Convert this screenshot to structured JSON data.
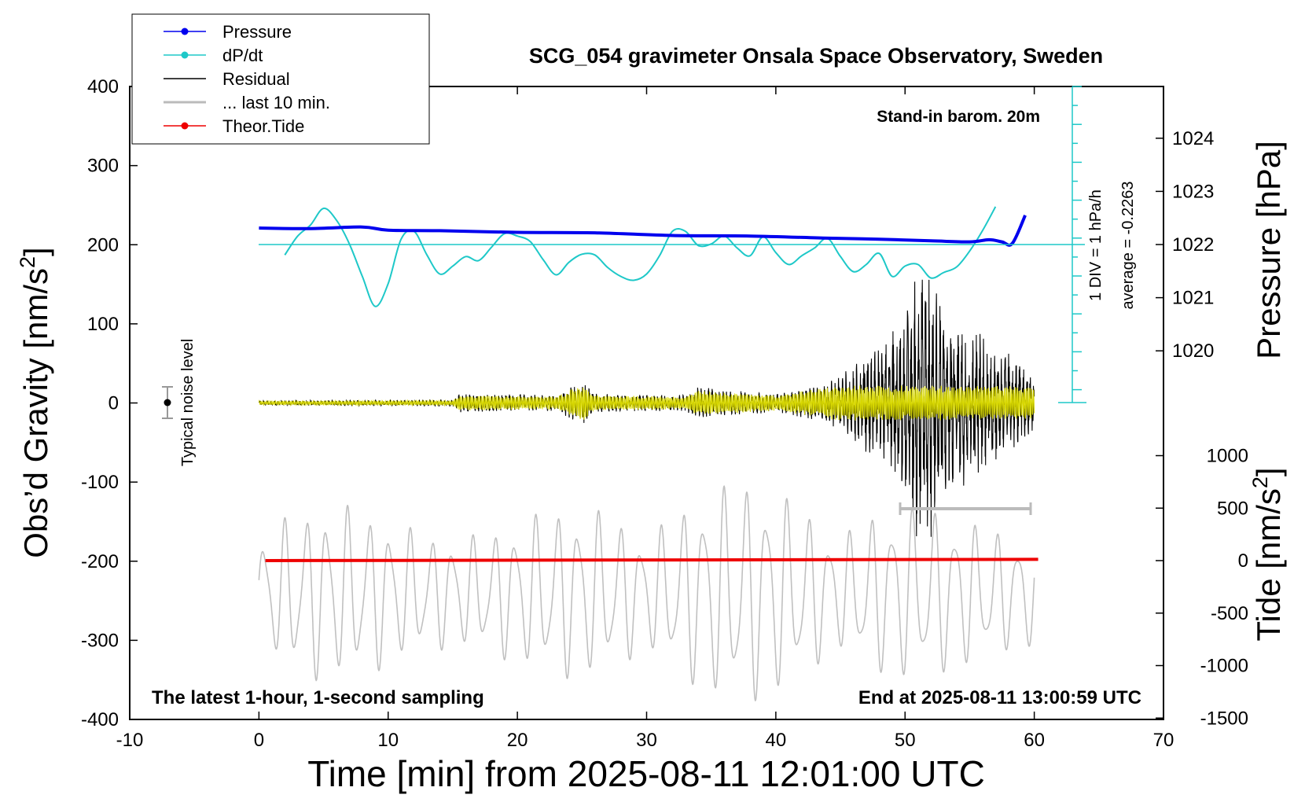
{
  "chart_data": {
    "type": "line",
    "title": "SCG_054 gravimeter Onsala Space Observatory, Sweden",
    "xlabel": "Time [min] from 2025-08-11 12:01:00 UTC",
    "ylabel_main": "Obs’d Gravity [nm/s",
    "ylabel_main_sup": "2",
    "ylabel_main_close": "]",
    "ylabel_pressure": "Pressure [hPa]",
    "ylabel_tide": "Tide [nm/s",
    "ylabel_tide_sup": "2",
    "ylabel_tide_close": "]",
    "xlim": [
      -10,
      70
    ],
    "ylim": [
      -400,
      400
    ],
    "x_ticks": [
      -10,
      0,
      10,
      20,
      30,
      40,
      50,
      60,
      70
    ],
    "y_ticks": [
      -400,
      -300,
      -200,
      -100,
      0,
      100,
      200,
      300,
      400
    ],
    "pressure_ticks": [
      1020,
      1021,
      1022,
      1023,
      1024
    ],
    "tide_ticks": [
      -1500,
      -1000,
      -500,
      0,
      500,
      1000
    ],
    "legend": [
      {
        "label": "Pressure",
        "color": "#0000ee",
        "marker": true
      },
      {
        "label": "dP/dt",
        "color": "#1ec8c8",
        "marker": true
      },
      {
        "label": "Residual",
        "color": "#000000",
        "marker": false
      },
      {
        "label": "... last 10 min.",
        "color": "#bbbbbb",
        "marker": false
      },
      {
        "label": "Theor.Tide",
        "color": "#ee0000",
        "marker": true
      }
    ],
    "annotations": {
      "barom": "Stand-in barom. 20m",
      "div": "1 DIV = 1 hPa/h",
      "average": "average = -0.2263",
      "noise": "Typical noise level",
      "latest": "The latest 1-hour, 1-second sampling",
      "end": "End at 2025-08-11 13:00:59 UTC"
    },
    "colors": {
      "pressure": "#0000ee",
      "dpdt": "#1ec8c8",
      "residual": "#000000",
      "last10": "#c0c0c0",
      "tide": "#ee0000",
      "filtered": "#d8d800"
    },
    "series": [
      {
        "name": "Pressure",
        "axis": "pressure",
        "x": [
          0,
          4,
          8,
          10,
          14,
          20,
          26,
          32,
          38,
          44,
          48,
          52,
          55,
          56.5,
          57.5,
          58.3,
          59.3
        ],
        "values": [
          1022.31,
          1022.3,
          1022.33,
          1022.27,
          1022.26,
          1022.23,
          1022.22,
          1022.17,
          1022.16,
          1022.12,
          1022.1,
          1022.07,
          1022.05,
          1022.09,
          1022.05,
          1022.02,
          1022.55
        ]
      },
      {
        "name": "dP/dt",
        "axis": "gravity",
        "x": [
          2,
          3,
          4,
          5,
          6,
          7,
          8,
          9,
          10,
          11,
          12,
          13,
          14,
          15,
          16,
          17,
          18,
          19,
          20,
          21,
          22,
          23,
          24,
          25,
          26,
          27,
          28,
          29,
          30,
          31,
          32,
          33,
          34,
          35,
          36,
          37,
          38,
          39,
          40,
          41,
          42,
          43,
          44,
          45,
          46,
          47,
          48,
          49,
          50,
          51,
          52,
          53,
          54,
          55,
          56,
          57
        ],
        "values": [
          187,
          211,
          225,
          246,
          231,
          201,
          160,
          122,
          151,
          207,
          217,
          187,
          163,
          173,
          185,
          180,
          197,
          214,
          211,
          204,
          181,
          162,
          178,
          188,
          187,
          171,
          160,
          155,
          163,
          186,
          217,
          217,
          199,
          201,
          211,
          196,
          186,
          210,
          190,
          175,
          186,
          196,
          208,
          185,
          166,
          175,
          189,
          160,
          173,
          175,
          158,
          165,
          172,
          192,
          218,
          248
        ]
      },
      {
        "name": "Theor.Tide",
        "axis": "tide",
        "x": [
          0.5,
          60.3
        ],
        "values": [
          0,
          12
        ]
      },
      {
        "name": "Residual",
        "axis": "gravity",
        "envelope_x": [
          0,
          15,
          15.5,
          23,
          25,
          26,
          33,
          34,
          40,
          44,
          46,
          48,
          50,
          51,
          52,
          53,
          55,
          57,
          60
        ],
        "envelope_amp": [
          3,
          4,
          12,
          10,
          30,
          12,
          10,
          20,
          12,
          25,
          50,
          75,
          110,
          180,
          180,
          120,
          100,
          80,
          40
        ]
      },
      {
        "name": "... last 10 min.",
        "axis": "gravity",
        "x_range": [
          0,
          60
        ],
        "center": -240,
        "amplitude_range": [
          20,
          200
        ]
      }
    ]
  }
}
